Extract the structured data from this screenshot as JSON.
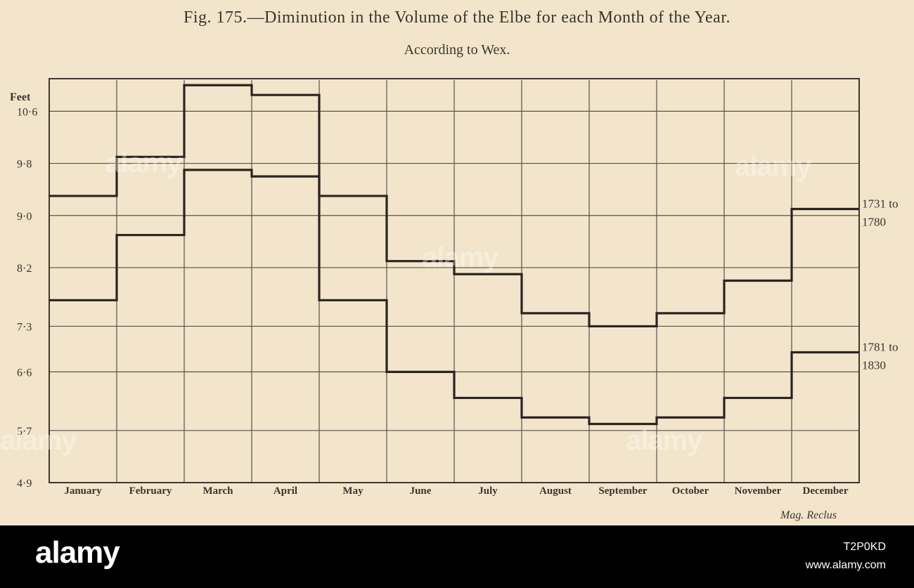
{
  "figure": {
    "title": "Fig. 175.—Diminution in the Volume of the Elbe for each Month of the Year.",
    "subtitle": "According to Wex.",
    "credit": "Mag. Reclus"
  },
  "chart_data": {
    "type": "step",
    "title": "Diminution in the Volume of the Elbe for each Month of the Year.",
    "subtitle": "According to Wex.",
    "ylabel": "Feet",
    "y_ticks": [
      "10·6",
      "9·8",
      "9·0",
      "8·2",
      "7·3",
      "6·6",
      "5·7",
      "4·9"
    ],
    "ylim": [
      4.9,
      11.1
    ],
    "categories": [
      "January",
      "February",
      "March",
      "April",
      "May",
      "June",
      "July",
      "August",
      "September",
      "October",
      "November",
      "December"
    ],
    "series": [
      {
        "name": "1731 to 1780",
        "label_lines": [
          "1731 to",
          "1780"
        ],
        "values": [
          9.3,
          9.9,
          11.0,
          10.85,
          9.3,
          8.3,
          8.1,
          7.5,
          7.3,
          7.5,
          8.0,
          9.1
        ]
      },
      {
        "name": "1781 to 1830",
        "label_lines": [
          "1781 to",
          "1830"
        ],
        "values": [
          7.7,
          8.7,
          9.7,
          9.6,
          7.7,
          6.6,
          6.2,
          5.9,
          5.8,
          5.9,
          6.2,
          6.9
        ]
      }
    ],
    "grid": true
  },
  "watermark": {
    "brand": "alamy",
    "image_id": "T2P0KD",
    "site": "www.alamy.com"
  },
  "colors": {
    "paper": "#f2e5cb",
    "ink": "#2b2520",
    "footer": "#000000"
  }
}
